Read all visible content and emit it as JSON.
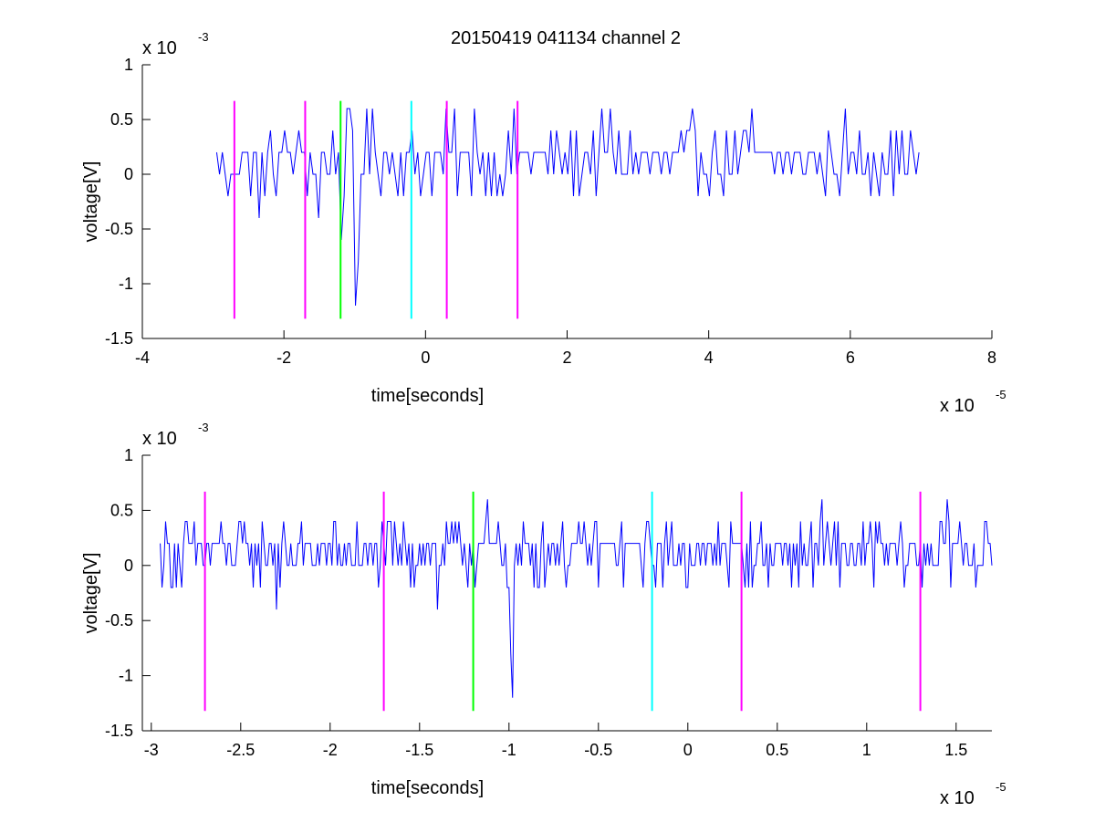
{
  "title": "20150419 041134 channel 2",
  "colors": {
    "signal": "#0000ff",
    "magenta_marker": "#ff00ff",
    "green_marker": "#00ff00",
    "cyan_marker": "#00ffff",
    "axes": "#000000",
    "background": "#ffffff"
  },
  "chart_data": [
    {
      "type": "line",
      "title": "20150419 041134 channel 2",
      "xlabel": "time[seconds]",
      "ylabel": "voltage[V]",
      "x_multiplier": "x 10",
      "x_exponent": "-5",
      "y_multiplier": "x 10",
      "y_exponent": "-3",
      "xlim": [
        -4,
        8
      ],
      "ylim": [
        -1.5,
        1
      ],
      "x_ticks": [
        -4,
        -2,
        0,
        2,
        4,
        6,
        8
      ],
      "x_tick_labels": [
        "-4",
        "-2",
        "0",
        "2",
        "4",
        "6",
        "8"
      ],
      "y_ticks": [
        -1.5,
        -1,
        -0.5,
        0,
        0.5,
        1
      ],
      "y_tick_labels": [
        "-1.5",
        "-1",
        "-0.5",
        "0",
        "0.5",
        "1"
      ],
      "grid": false,
      "series": [
        {
          "x_range": [
            -2.95,
            7.0
          ],
          "sample_step": 0.04,
          "noise_levels": [
            -0.2,
            0,
            0.2,
            0.4,
            0.6
          ],
          "spikes": [
            {
              "x": -2.8,
              "y": -0.2
            },
            {
              "x": -2.35,
              "y": -0.4
            },
            {
              "x": -1.5,
              "y": -0.4
            },
            {
              "x": -1.2,
              "y": -0.6
            },
            {
              "x": -0.98,
              "y": -1.2
            },
            {
              "x": -0.95,
              "y": -0.8
            },
            {
              "x": 0.7,
              "y": 0.6
            },
            {
              "x": 2.6,
              "y": 0.6
            },
            {
              "x": 4.6,
              "y": 0.6
            }
          ]
        }
      ],
      "markers": [
        {
          "x": -2.7,
          "color": "#ff00ff"
        },
        {
          "x": -1.7,
          "color": "#ff00ff"
        },
        {
          "x": -1.2,
          "color": "#00ff00"
        },
        {
          "x": -0.2,
          "color": "#00ffff"
        },
        {
          "x": 0.3,
          "color": "#ff00ff"
        },
        {
          "x": 1.3,
          "color": "#ff00ff"
        }
      ],
      "marker_ylim": [
        -1.32,
        0.67
      ]
    },
    {
      "type": "line",
      "title": "",
      "xlabel": "time[seconds]",
      "ylabel": "voltage[V]",
      "x_multiplier": "x 10",
      "x_exponent": "-5",
      "y_multiplier": "x 10",
      "y_exponent": "-3",
      "xlim": [
        -3.05,
        1.7
      ],
      "ylim": [
        -1.5,
        1
      ],
      "x_ticks": [
        -3,
        -2.5,
        -2,
        -1.5,
        -1,
        -0.5,
        0,
        0.5,
        1,
        1.5
      ],
      "x_tick_labels": [
        "-3",
        "-2.5",
        "-2",
        "-1.5",
        "-1",
        "-0.5",
        "0",
        "0.5",
        "1",
        "1.5"
      ],
      "y_ticks": [
        -1.5,
        -1,
        -0.5,
        0,
        0.5,
        1
      ],
      "y_tick_labels": [
        "-1.5",
        "-1",
        "-0.5",
        "0",
        "0.5",
        "1"
      ],
      "grid": false,
      "series": [
        {
          "x_range": [
            -2.95,
            1.7
          ],
          "sample_step": 0.01,
          "noise_levels": [
            -0.2,
            0,
            0.2,
            0.4
          ],
          "spikes": [
            {
              "x": -2.83,
              "y": -0.2
            },
            {
              "x": -2.3,
              "y": -0.4
            },
            {
              "x": -1.4,
              "y": -0.4
            },
            {
              "x": -1.12,
              "y": 0.6
            },
            {
              "x": -0.98,
              "y": -1.2
            },
            {
              "x": -0.99,
              "y": -0.8
            },
            {
              "x": 0.75,
              "y": 0.6
            },
            {
              "x": 1.45,
              "y": 0.6
            }
          ]
        }
      ],
      "markers": [
        {
          "x": -2.7,
          "color": "#ff00ff"
        },
        {
          "x": -1.7,
          "color": "#ff00ff"
        },
        {
          "x": -1.2,
          "color": "#00ff00"
        },
        {
          "x": -0.2,
          "color": "#00ffff"
        },
        {
          "x": 0.3,
          "color": "#ff00ff"
        },
        {
          "x": 1.3,
          "color": "#ff00ff"
        }
      ],
      "marker_ylim": [
        -1.32,
        0.67
      ]
    }
  ]
}
